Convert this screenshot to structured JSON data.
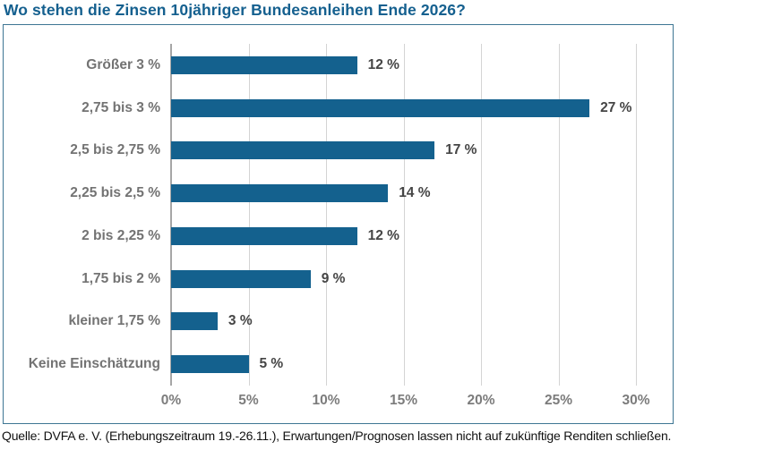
{
  "title": "Wo stehen die Zinsen 10jähriger Bundesanleihen Ende 2026?",
  "footer": "Quelle: DVFA e. V. (Erhebungszeitraum 19.-26.11.), Erwartungen/Prognosen lassen nicht auf zukünftige Renditen schließen.",
  "chart_data": {
    "type": "bar",
    "orientation": "horizontal",
    "title": "Wo stehen die Zinsen 10jähriger Bundesanleihen Ende 2026?",
    "categories": [
      "Größer 3 %",
      "2,75 bis 3 %",
      "2,5 bis 2,75 %",
      "2,25 bis 2,5 %",
      "2 bis 2,25 %",
      "1,75 bis 2 %",
      "kleiner 1,75 %",
      "Keine Einschätzung"
    ],
    "values": [
      12,
      27,
      17,
      14,
      12,
      9,
      3,
      5
    ],
    "value_labels": [
      "12 %",
      "27 %",
      "17 %",
      "14 %",
      "12 %",
      "9 %",
      "3 %",
      "5 %"
    ],
    "xlabel": "",
    "ylabel": "",
    "xlim": [
      0,
      30
    ],
    "x_ticks": [
      0,
      5,
      10,
      15,
      20,
      25,
      30
    ],
    "x_tick_labels": [
      "0%",
      "5%",
      "10%",
      "15%",
      "20%",
      "25%",
      "30%"
    ],
    "grid": "vertical-gridlines-on",
    "legend": "none",
    "colors": {
      "bar": "#14618E",
      "title_text": "#15608F",
      "box_border": "#3E7693",
      "gridline": "#D4D4D4",
      "axis_line": "#A6A6A6",
      "category_label": "#737373",
      "value_label": "#454545",
      "tick_label": "#7C7C7C",
      "footer_text": "#111111",
      "background": "#FFFFFF"
    }
  }
}
